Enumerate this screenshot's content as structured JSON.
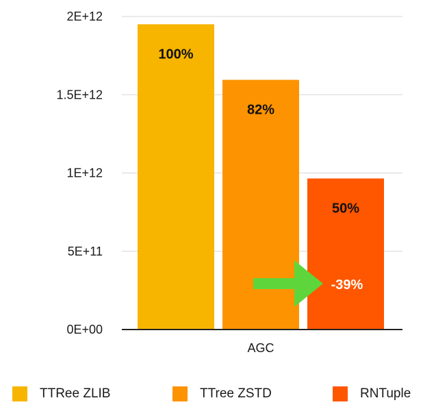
{
  "chart_data": {
    "type": "bar",
    "title": "",
    "xlabel": "",
    "ylabel": "",
    "categories": [
      "AGC"
    ],
    "ylim": [
      0,
      2000000000000
    ],
    "yticks": [
      {
        "value": 0,
        "label": "0E+00"
      },
      {
        "value": 500000000000,
        "label": "5E+11"
      },
      {
        "value": 1000000000000,
        "label": "1E+12"
      },
      {
        "value": 1500000000000,
        "label": "1.5E+12"
      },
      {
        "value": 2000000000000,
        "label": "2E+12"
      }
    ],
    "grid": "horizontal",
    "legend_position": "bottom",
    "series": [
      {
        "name": "TTRee ZLIB",
        "values": [
          1950000000000
        ],
        "label": "100%",
        "color": "#F7B500"
      },
      {
        "name": "TTree ZSTD",
        "values": [
          1595000000000
        ],
        "label": "82%",
        "color": "#FD9300"
      },
      {
        "name": "RNTuple",
        "values": [
          965000000000
        ],
        "label": "50%",
        "color": "#FF5600"
      }
    ],
    "annotation": {
      "text": "-39%",
      "arrow_color": "#5ED63B",
      "target_series": "RNTuple"
    }
  }
}
